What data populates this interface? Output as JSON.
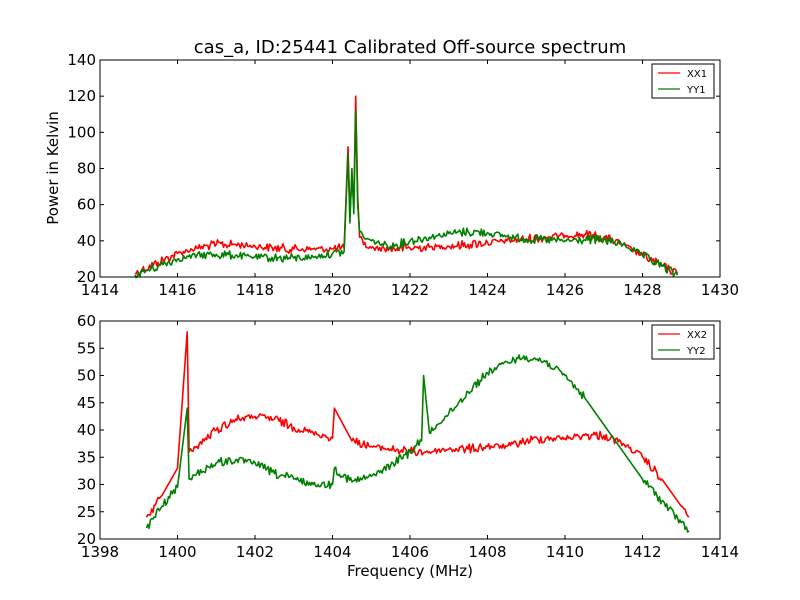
{
  "figure": {
    "title": "cas_a, ID:25441 Calibrated Off-source spectrum"
  },
  "chart_data": [
    {
      "type": "line",
      "title": "cas_a, ID:25441 Calibrated Off-source spectrum",
      "xlabel": "",
      "ylabel": "Power in Kelvin",
      "xlim": [
        1414,
        1430
      ],
      "ylim": [
        20,
        140
      ],
      "xticks": [
        "1414",
        "1416",
        "1418",
        "1420",
        "1422",
        "1424",
        "1426",
        "1428",
        "1430"
      ],
      "yticks": [
        "20",
        "40",
        "60",
        "80",
        "100",
        "120",
        "140"
      ],
      "legend_position": "top-right",
      "grid": false,
      "series": [
        {
          "name": "XX1",
          "color": "#ff0000",
          "x": [
            1414.9,
            1415.5,
            1416.0,
            1416.5,
            1417.0,
            1417.5,
            1418.0,
            1418.5,
            1419.0,
            1419.5,
            1420.0,
            1420.3,
            1420.4,
            1420.45,
            1420.5,
            1420.55,
            1420.6,
            1420.65,
            1420.7,
            1420.8,
            1421.0,
            1421.5,
            1422.0,
            1422.5,
            1423.0,
            1423.5,
            1424.0,
            1424.5,
            1425.0,
            1425.5,
            1426.0,
            1426.5,
            1427.0,
            1427.5,
            1428.0,
            1428.5,
            1428.9
          ],
          "y": [
            22,
            28,
            33,
            36,
            38,
            38,
            37,
            36,
            35.5,
            35.5,
            35.5,
            36,
            92,
            55,
            75,
            60,
            120,
            65,
            42,
            38,
            36,
            35.5,
            36,
            36.5,
            37,
            38,
            39,
            40,
            41,
            42,
            43,
            43.5,
            42,
            38,
            32,
            26,
            22
          ]
        },
        {
          "name": "YY1",
          "color": "#008000",
          "x": [
            1414.9,
            1415.5,
            1416.0,
            1416.5,
            1417.0,
            1417.5,
            1418.0,
            1418.5,
            1419.0,
            1419.5,
            1420.0,
            1420.3,
            1420.4,
            1420.45,
            1420.5,
            1420.55,
            1420.6,
            1420.65,
            1420.7,
            1420.8,
            1421.0,
            1421.5,
            1422.0,
            1422.5,
            1423.0,
            1423.5,
            1424.0,
            1424.5,
            1425.0,
            1425.5,
            1426.0,
            1426.5,
            1427.0,
            1427.5,
            1428.0,
            1428.5,
            1428.9
          ],
          "y": [
            21,
            26,
            30,
            32,
            32.5,
            32,
            31,
            30.5,
            30.5,
            31,
            33,
            34,
            88,
            50,
            80,
            55,
            112,
            60,
            45,
            42,
            40,
            37,
            40,
            42,
            44,
            45,
            44.5,
            42.5,
            41,
            40.5,
            40,
            40.5,
            40.5,
            38,
            32,
            26,
            21
          ]
        }
      ]
    },
    {
      "type": "line",
      "title": "",
      "xlabel": "Frequency (MHz)",
      "ylabel": "",
      "xlim": [
        1398,
        1414
      ],
      "ylim": [
        20,
        60
      ],
      "xticks": [
        "1398",
        "1400",
        "1402",
        "1404",
        "1406",
        "1408",
        "1410",
        "1412",
        "1414"
      ],
      "yticks": [
        "20",
        "25",
        "30",
        "35",
        "40",
        "45",
        "50",
        "55",
        "60"
      ],
      "legend_position": "top-right",
      "grid": false,
      "series": [
        {
          "name": "XX2",
          "color": "#ff0000",
          "x": [
            1399.2,
            1399.6,
            1400.0,
            1400.25,
            1400.3,
            1400.5,
            1401.0,
            1401.5,
            1402.0,
            1402.5,
            1403.0,
            1403.5,
            1404.0,
            1404.05,
            1404.5,
            1405.0,
            1405.5,
            1406.0,
            1406.5,
            1407.0,
            1407.5,
            1408.0,
            1408.5,
            1409.0,
            1409.5,
            1410.0,
            1410.5,
            1411.0,
            1411.5,
            1412.0,
            1412.5,
            1413.0,
            1413.2
          ],
          "y": [
            24,
            28,
            33,
            58,
            36,
            37,
            40,
            42,
            42.5,
            42,
            40.5,
            39.5,
            38.5,
            44,
            38,
            37,
            36.5,
            36,
            36,
            36.5,
            36.5,
            37,
            37,
            38,
            38.5,
            38.5,
            39,
            39,
            37.5,
            35,
            31,
            26,
            24
          ]
        },
        {
          "name": "YY2",
          "color": "#008000",
          "x": [
            1399.2,
            1399.6,
            1400.0,
            1400.25,
            1400.3,
            1400.5,
            1401.0,
            1401.5,
            1402.0,
            1402.5,
            1403.0,
            1403.5,
            1404.0,
            1404.05,
            1404.5,
            1405.0,
            1405.5,
            1406.0,
            1406.3,
            1406.35,
            1406.5,
            1407.0,
            1407.5,
            1408.0,
            1408.5,
            1409.0,
            1409.5,
            1410.0,
            1410.5,
            1411.0,
            1411.5,
            1412.0,
            1412.5,
            1413.0,
            1413.2
          ],
          "y": [
            22,
            26,
            29.5,
            44,
            31,
            32,
            34,
            34.5,
            34,
            32,
            31,
            30,
            30,
            33,
            30.5,
            31.5,
            33.5,
            36,
            38,
            50,
            39.5,
            43,
            47,
            50.5,
            52.5,
            53.5,
            52.5,
            50,
            46,
            41,
            36,
            31,
            27,
            23,
            21.5
          ]
        }
      ]
    }
  ]
}
